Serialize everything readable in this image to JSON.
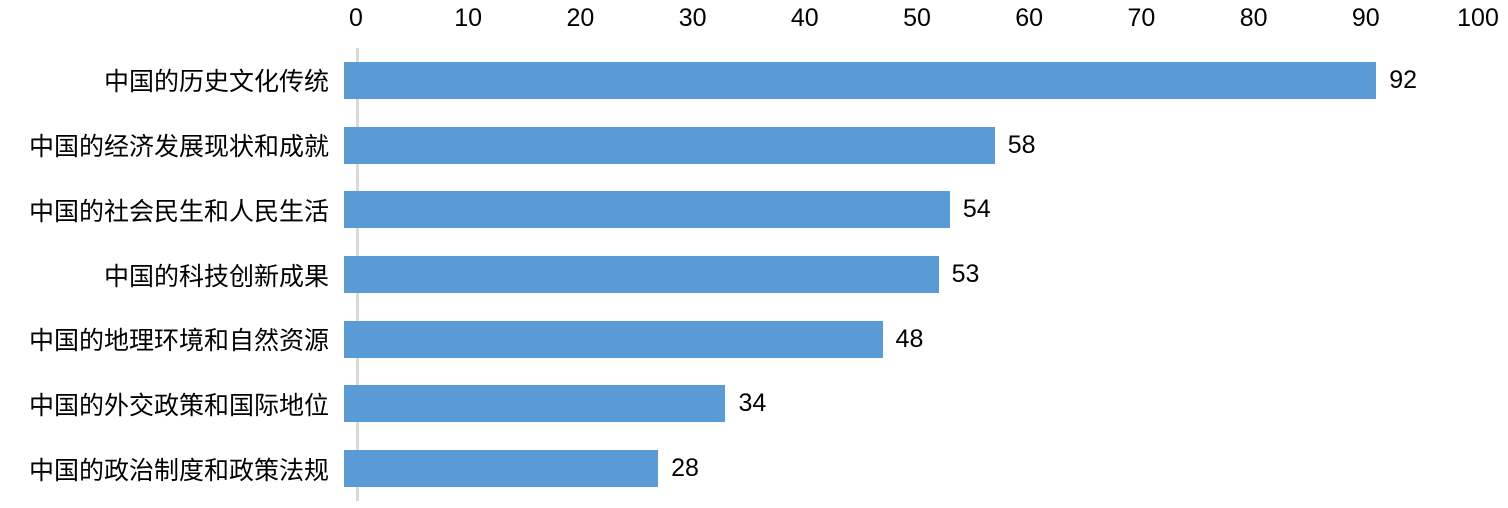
{
  "chart_data": {
    "type": "bar",
    "orientation": "horizontal",
    "title": "",
    "xlabel": "",
    "ylabel": "",
    "categories": [
      "中国的历史文化传统",
      "中国的经济发展现状和成就",
      "中国的社会民生和人民生活",
      "中国的科技创新成果",
      "中国的地理环境和自然资源",
      "中国的外交政策和国际地位",
      "中国的政治制度和政策法规"
    ],
    "values": [
      92,
      58,
      54,
      53,
      48,
      34,
      28
    ],
    "data_labels": [
      "92",
      "58",
      "54",
      "53",
      "48",
      "34",
      "28"
    ],
    "xlim": [
      0,
      100
    ],
    "x_ticks": [
      "0",
      "10",
      "20",
      "30",
      "40",
      "50",
      "60",
      "70",
      "80",
      "90",
      "100"
    ],
    "x_tick_values": [
      0,
      10,
      20,
      30,
      40,
      50,
      60,
      70,
      80,
      90,
      100
    ],
    "axis_position": "top",
    "grid": false,
    "legend": false,
    "colors": {
      "bar": "#5b9bd5",
      "axis_line": "#d9d9d9",
      "text": "#000000",
      "background": "#ffffff"
    }
  }
}
